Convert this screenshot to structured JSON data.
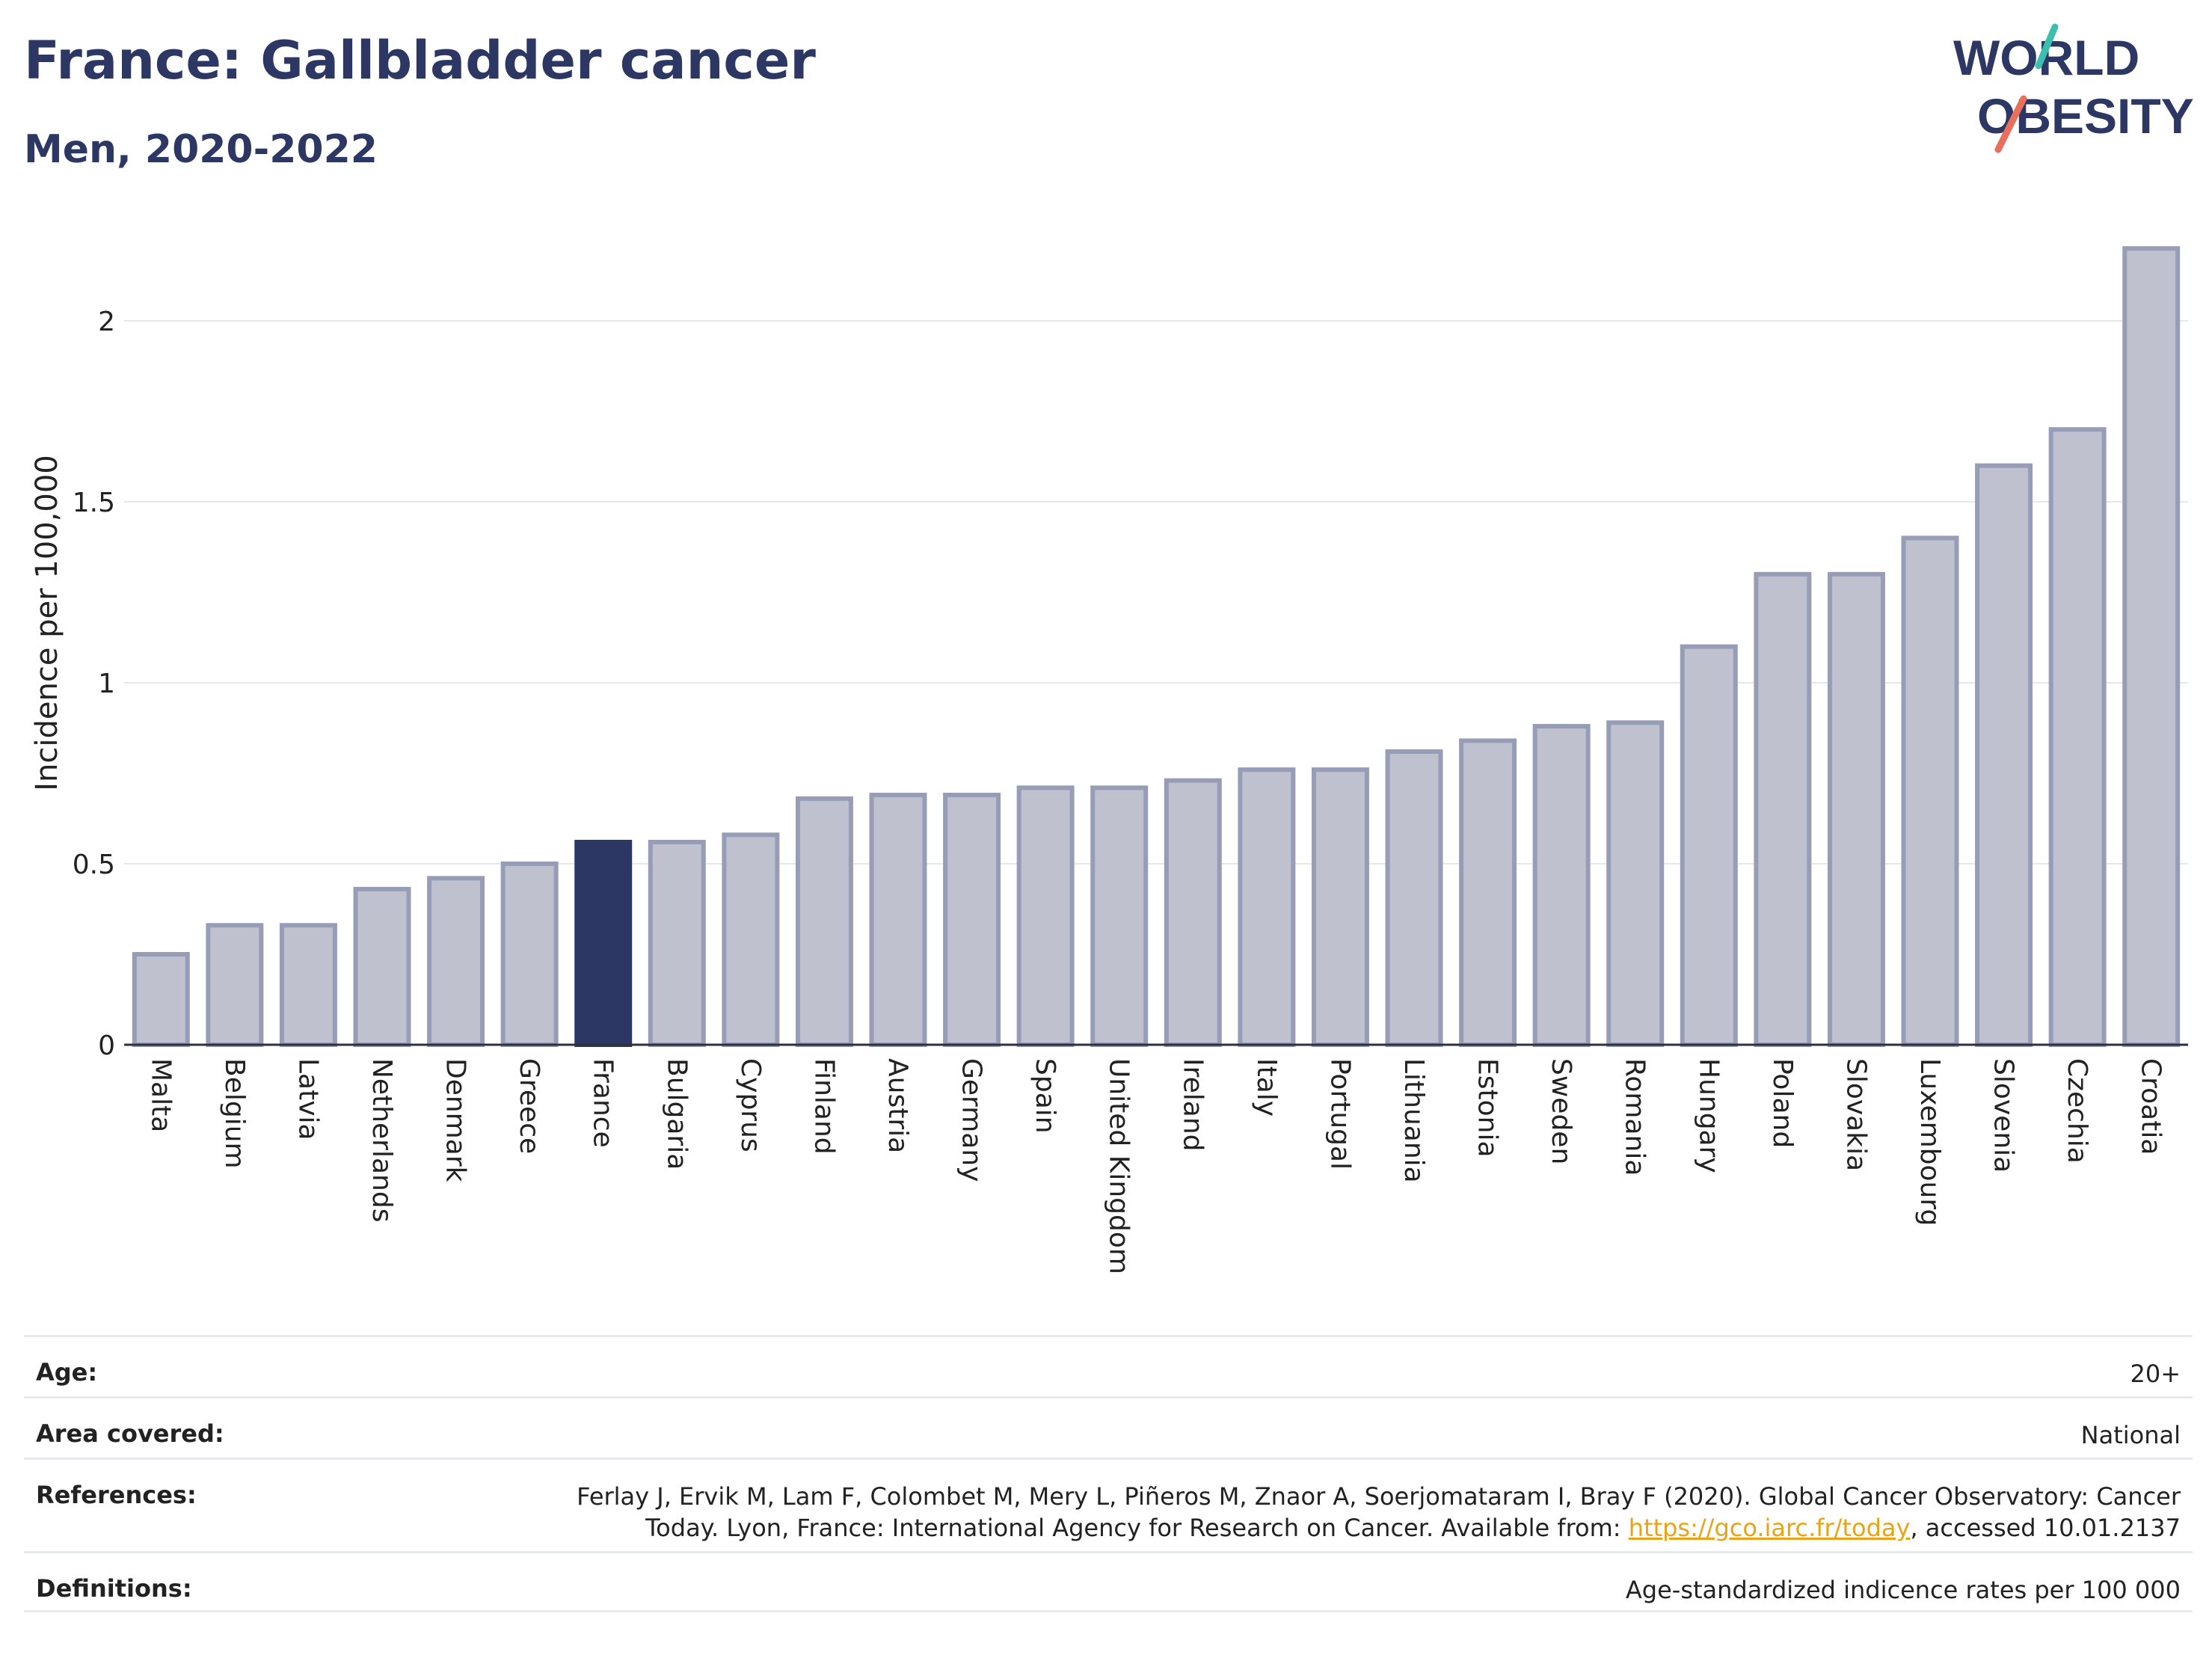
{
  "header": {
    "title": "France: Gallbladder cancer",
    "subtitle": "Men, 2020-2022"
  },
  "logo": {
    "line1": "WORLD",
    "line2": "OBESITY",
    "brand_color": "#2c3763",
    "accent_colors": [
      "#3dbfb0",
      "#e8705a"
    ]
  },
  "chart_data": {
    "type": "bar",
    "ylabel": "Incidence per 100,000",
    "xlabel": "",
    "ylim": [
      0,
      2.25
    ],
    "yticks": [
      0,
      0.5,
      1,
      1.5,
      2
    ],
    "ytick_labels": [
      "0",
      "0.5",
      "1",
      "1.5",
      "2"
    ],
    "grid": true,
    "highlight": "France",
    "colors": {
      "default_fill": "#bfc2ce",
      "default_stroke": "#979db7",
      "highlight_fill": "#2c3763"
    },
    "categories": [
      "Malta",
      "Belgium",
      "Latvia",
      "Netherlands",
      "Denmark",
      "Greece",
      "France",
      "Bulgaria",
      "Cyprus",
      "Finland",
      "Austria",
      "Germany",
      "Spain",
      "United Kingdom",
      "Ireland",
      "Italy",
      "Portugal",
      "Lithuania",
      "Estonia",
      "Sweden",
      "Romania",
      "Hungary",
      "Poland",
      "Slovakia",
      "Luxembourg",
      "Slovenia",
      "Czechia",
      "Croatia"
    ],
    "values": [
      0.25,
      0.33,
      0.33,
      0.43,
      0.46,
      0.5,
      0.56,
      0.56,
      0.58,
      0.68,
      0.69,
      0.69,
      0.71,
      0.71,
      0.73,
      0.76,
      0.76,
      0.81,
      0.84,
      0.88,
      0.89,
      1.1,
      1.3,
      1.3,
      1.4,
      1.6,
      1.7,
      2.2
    ]
  },
  "meta": {
    "age_label": "Age:",
    "age_value": "20+",
    "area_label": "Area covered:",
    "area_value": "National",
    "references_label": "References:",
    "references_text_1": "Ferlay J, Ervik M, Lam F, Colombet M, Mery L, Piñeros M, Znaor A, Soerjomataram I, Bray F (2020). Global Cancer Observatory: Cancer Today. Lyon, France: International Agency for Research on Cancer. Available from: ",
    "references_link": "https://gco.iarc.fr/today",
    "references_text_2": ", accessed 10.01.2137",
    "definitions_label": "Definitions:",
    "definitions_value": "Age-standardized indicence rates per 100 000"
  }
}
